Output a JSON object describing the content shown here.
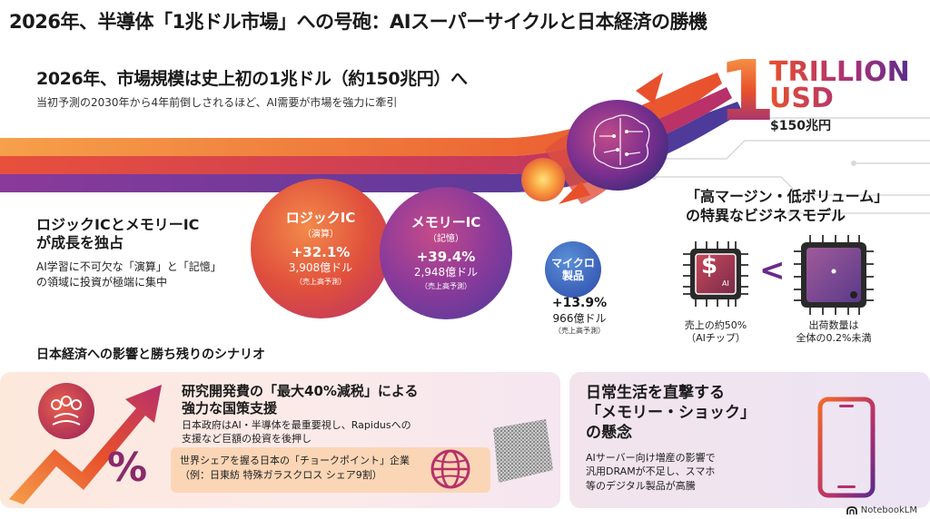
{
  "main_title": "2026年、半導体「1兆ドル市場」への号砲：AIスーパーサイクルと日本経済の勝機",
  "headline": {
    "title": "2026年、市場規模は史上初の1兆ドル（約150兆円）へ",
    "subtitle": "当初予測の2030年から4年前倒しされるほど、AI需要が市場を強力に牽引"
  },
  "trillion_badge": {
    "big_number": "1",
    "line1": "TRILLION",
    "line2": "USD",
    "yen": "$150兆円"
  },
  "growth_section": {
    "title_line1": "ロジックICとメモリーIC",
    "title_line2": "が成長を独占",
    "text_line1": "AI学習に不可欠な「演算」と「記憶」",
    "text_line2": "の領域に投資が極端に集中"
  },
  "segments": {
    "logic": {
      "name": "ロジックIC",
      "sub": "（演算）",
      "growth": "+32.1%",
      "amount": "3,908億ドル",
      "note": "（売上高予測）"
    },
    "memory": {
      "name": "メモリーIC",
      "sub": "（記憶）",
      "growth": "+39.4%",
      "amount": "2,948億ドル",
      "note": "（売上高予測）"
    },
    "micro": {
      "name_line1": "マイクロ",
      "name_line2": "製品",
      "growth": "+13.9%",
      "amount": "966億ドル",
      "note": "（売上高予測）"
    }
  },
  "business_model": {
    "title_line1": "「高マージン・低ボリューム」",
    "title_line2": "の特異なビジネスモデル",
    "ai_chip_symbol": "$",
    "ai_chip_label": "AI",
    "compare_symbol": "<",
    "ai_caption_line1": "売上の約50%",
    "ai_caption_line2": "（AIチップ）",
    "volume_caption_line1": "出荷数量は",
    "volume_caption_line2": "全体の0.2%未満"
  },
  "japan_section": {
    "heading": "日本経済への影響と勝ち残りのシナリオ",
    "percent_symbol": "%",
    "policy_title_line1": "研究開発費の「最大40%減税」による",
    "policy_title_line2": "強力な国策支援",
    "policy_text_line1": "日本政府はAI・半導体を最重要視し、Rapidusへの",
    "policy_text_line2": "支援など巨額の投資を後押し",
    "choke_line1": "世界シェアを握る日本の「チョークポイント」企業",
    "choke_line2": "（例：日東紡 特殊ガラスクロス シェア9割）"
  },
  "memory_shock": {
    "title_line1": "日常生活を直撃する",
    "title_line2": "「メモリー・ショック」",
    "title_line3": "の懸念",
    "text_line1": "AIサーバー向け増産の影響で",
    "text_line2": "汎用DRAMが不足し、スマホ",
    "text_line3": "等のデジタル製品が高騰"
  },
  "watermark": "NotebookLM",
  "icons": [
    "rocket-icon",
    "brain-circuit-icon",
    "ai-chip-icon",
    "memory-chip-icon",
    "government-seal-icon",
    "rising-arrow-icon",
    "globe-icon",
    "glass-cloth-icon",
    "smartphone-icon",
    "notebooklm-logo-icon"
  ],
  "colors": {
    "orange": "#f26a28",
    "magenta": "#b7306a",
    "purple": "#5b2b8c",
    "blue": "#3a5eb8"
  }
}
